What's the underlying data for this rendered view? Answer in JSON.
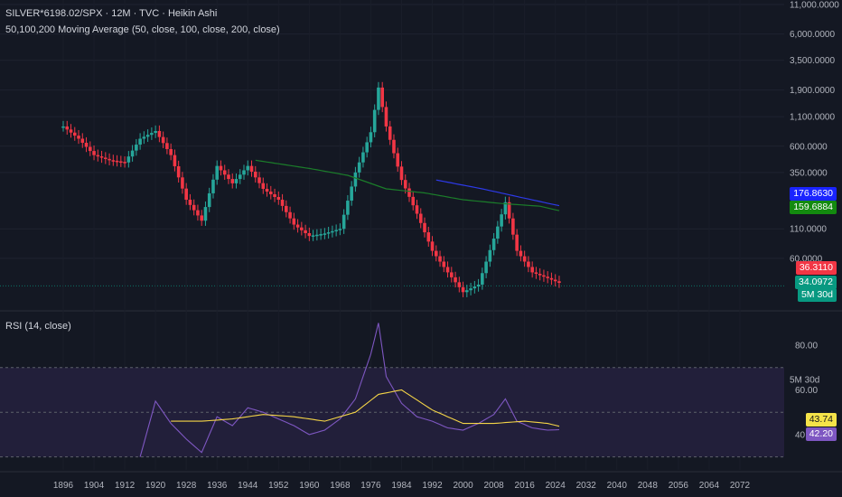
{
  "header": {
    "symbol_line": "SILVER*6198.02/SPX · 12M · TVC · Heikin Ashi",
    "ma_line": "50,100,200 Moving Average (50, close, 100, close, 200, close)",
    "rsi_line": "RSI (14, close)"
  },
  "colors": {
    "background": "#141823",
    "up": "#26a69a",
    "down": "#f23645",
    "ma_blue": "#2d3ae8",
    "ma_green": "#1b7d2a",
    "rsi_line": "#7e57c2",
    "rsi_ma": "#f5d547",
    "rsi_band": "#221f3a"
  },
  "chart_data": [
    {
      "type": "candlestick",
      "scale": "log",
      "y_ticks": [
        "11,000.0000",
        "6,000.0000",
        "3,500.0000",
        "1,900.0000",
        "1,100.0000",
        "600.0000",
        "350.0000",
        "176.8630",
        "159.6884",
        "110.0000",
        "60.0000",
        "36.3110",
        "34.0972",
        "5M 30d"
      ],
      "x_ticks": [
        "1896",
        "1904",
        "1912",
        "1920",
        "1928",
        "1936",
        "1944",
        "1952",
        "1960",
        "1968",
        "1976",
        "1984",
        "1992",
        "2000",
        "2008",
        "2016",
        "2024",
        "2032",
        "2040",
        "2048",
        "2056",
        "2064",
        "2072"
      ],
      "series": [
        {
          "name": "SILVER*6198.02/SPX",
          "x": [
            1896,
            1900,
            1904,
            1908,
            1912,
            1916,
            1920,
            1924,
            1928,
            1932,
            1936,
            1940,
            1944,
            1948,
            1952,
            1956,
            1960,
            1964,
            1968,
            1972,
            1976,
            1978,
            1980,
            1984,
            1988,
            1992,
            1996,
            2000,
            2004,
            2008,
            2011,
            2014,
            2018,
            2022,
            2025
          ],
          "close": [
            900,
            700,
            500,
            450,
            430,
            700,
            820,
            500,
            200,
            130,
            400,
            280,
            400,
            250,
            200,
            120,
            95,
            100,
            110,
            350,
            800,
            2000,
            900,
            300,
            150,
            70,
            45,
            30,
            35,
            90,
            190,
            70,
            45,
            40,
            36.311
          ]
        },
        {
          "name": "MA 100",
          "x": [
            1946,
            1960,
            1970,
            1980,
            1990,
            2000,
            2010,
            2020,
            2025
          ],
          "close": [
            450,
            380,
            330,
            250,
            230,
            200,
            185,
            175,
            159.6884
          ]
        },
        {
          "name": "MA 200",
          "x": [
            1993,
            2005,
            2015,
            2025
          ],
          "close": [
            300,
            250,
            210,
            176.863
          ]
        }
      ],
      "last_values": {
        "ma_200": "176.8630",
        "ma_100": "159.6884",
        "close": "36.3110",
        "bid": "34.0972",
        "countdown": "5M 30d"
      }
    },
    {
      "type": "line",
      "title": "RSI (14, close)",
      "y_ticks": [
        "80.00",
        "60.00",
        "40.00"
      ],
      "series": [
        {
          "name": "RSI",
          "x": [
            1916,
            1920,
            1924,
            1928,
            1932,
            1936,
            1940,
            1944,
            1948,
            1952,
            1956,
            1960,
            1964,
            1968,
            1972,
            1976,
            1978,
            1980,
            1984,
            1988,
            1992,
            1996,
            2000,
            2004,
            2008,
            2011,
            2014,
            2018,
            2022,
            2025
          ],
          "values": [
            30,
            55,
            45,
            38,
            32,
            48,
            44,
            52,
            50,
            47,
            44,
            40,
            42,
            47,
            56,
            76,
            90,
            66,
            54,
            48,
            46,
            43,
            42,
            45,
            49,
            56,
            46,
            43,
            42,
            42.2
          ]
        },
        {
          "name": "RSI-based MA",
          "x": [
            1924,
            1932,
            1940,
            1948,
            1956,
            1964,
            1972,
            1978,
            1984,
            1992,
            2000,
            2008,
            2016,
            2022,
            2025
          ],
          "values": [
            46,
            46,
            47,
            49,
            48,
            46,
            50,
            58,
            60,
            51,
            45,
            45,
            46,
            45,
            43.74
          ]
        }
      ],
      "last_values": {
        "rsi_ma": "43.74",
        "rsi": "42.20"
      }
    }
  ]
}
